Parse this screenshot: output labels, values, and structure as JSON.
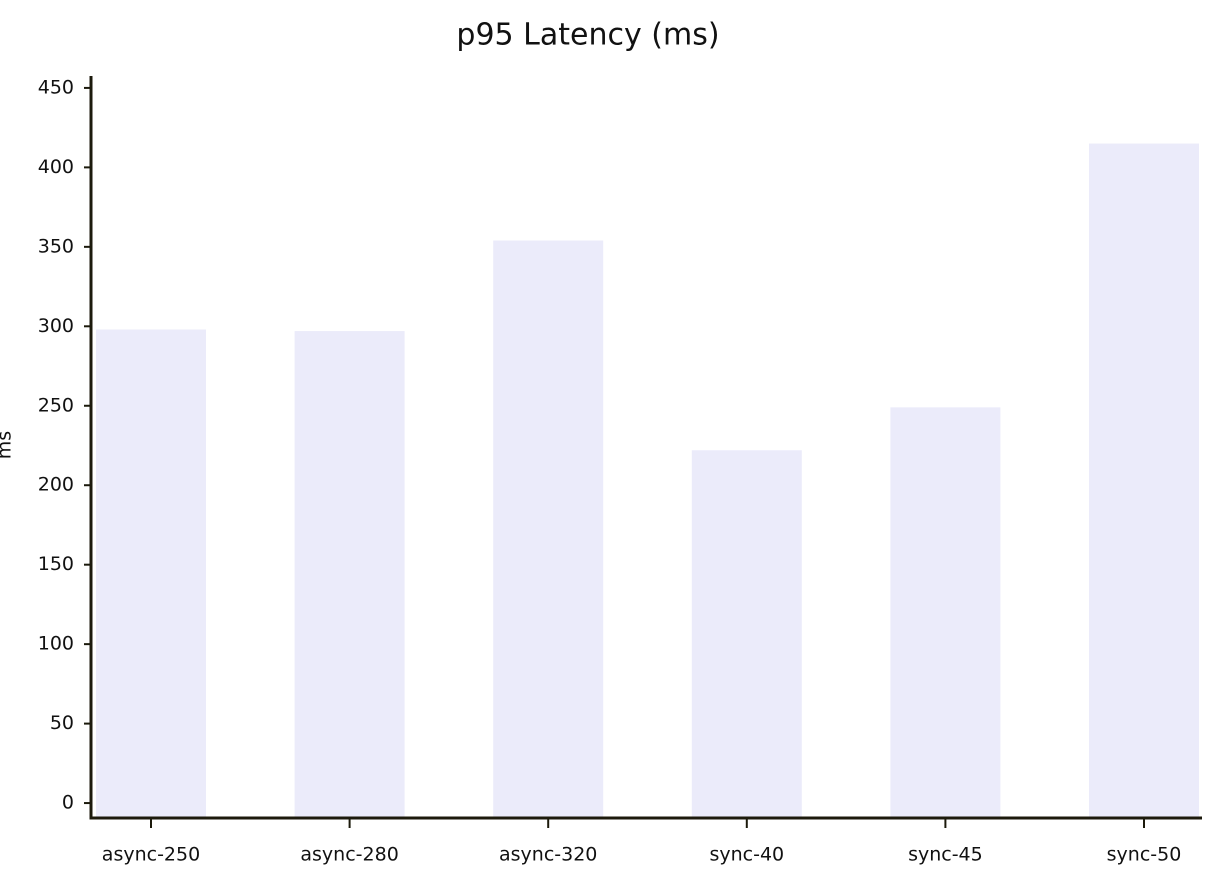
{
  "chart_data": {
    "type": "bar",
    "title": "p95 Latency (ms)",
    "y_label": "ms",
    "categories": [
      "async-250",
      "async-280",
      "async-320",
      "sync-40",
      "sync-45",
      "sync-50"
    ],
    "values": [
      298,
      297,
      354,
      222,
      249,
      415
    ],
    "color": "#ebebfa",
    "ylim": [
      -9.4,
      457.5
    ],
    "yticks": [
      0,
      50,
      100,
      150,
      200,
      250,
      300,
      350,
      400,
      450
    ]
  }
}
